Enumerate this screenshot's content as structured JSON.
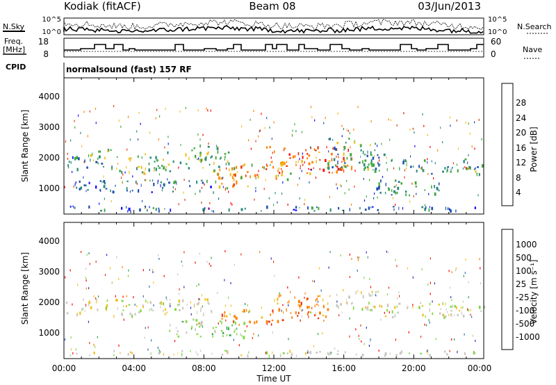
{
  "header": {
    "station": "Kodiak (fitACF)",
    "beam": "Beam 08",
    "date": "03/Jun/2013"
  },
  "strips": {
    "nsky_label": "N.Sky",
    "nsky_ticks": [
      "10^5",
      "10^0"
    ],
    "nsearch_label": "N.Search",
    "nsearch_ticks": [
      "10^5",
      "10^0"
    ],
    "freq_label_1": "Freq.",
    "freq_label_2": "[MHz]",
    "freq_ticks": [
      "18",
      "8"
    ],
    "nave_label": "Nave",
    "nave_ticks": [
      "60",
      "0"
    ],
    "cpid_label": "CPID",
    "cpid_text": "normalsound (fast) 157 RF"
  },
  "chart_data": [
    {
      "type": "heatmap",
      "panel": "power",
      "ylabel": "Slant Range [km]",
      "ylim": [
        0,
        4500
      ],
      "y_ticks": [
        1000,
        2000,
        3000,
        4000
      ],
      "x_ticks": [
        "00:00",
        "04:00",
        "08:00",
        "12:00",
        "16:00",
        "20:00",
        "00:00"
      ],
      "colorbar": {
        "label": "Power [dB]",
        "ticks": [
          "28",
          "24",
          "20",
          "16",
          "12",
          "8",
          "4"
        ],
        "colors": [
          "#ff0000",
          "#e8380a",
          "#ff8000",
          "#f0c020",
          "#40a840",
          "#2a8a78",
          "#2050b0",
          "#1010ff"
        ]
      },
      "bands": [
        {
          "t0": 0.1,
          "t1": 1.3,
          "r0": 1450,
          "r1": 1950,
          "lvl": 7
        },
        {
          "t0": 1.3,
          "t1": 2.8,
          "r0": 1500,
          "r1": 2200,
          "lvl": 10
        },
        {
          "t0": 2.8,
          "t1": 4.5,
          "r0": 1350,
          "r1": 1900,
          "lvl": 14
        },
        {
          "t0": 4.5,
          "t1": 6.5,
          "r0": 1350,
          "r1": 2100,
          "lvl": 12
        },
        {
          "t0": 6.5,
          "t1": 9.5,
          "r0": 1500,
          "r1": 2300,
          "lvl": 12
        },
        {
          "t0": 8.5,
          "t1": 10.5,
          "r0": 800,
          "r1": 1500,
          "lvl": 18
        },
        {
          "t0": 9.5,
          "t1": 13.0,
          "r0": 1100,
          "r1": 1700,
          "lvl": 18
        },
        {
          "t0": 11.5,
          "t1": 16.5,
          "r0": 1300,
          "r1": 2200,
          "lvl": 22
        },
        {
          "t0": 15.0,
          "t1": 17.8,
          "r0": 1500,
          "r1": 2500,
          "lvl": 10
        },
        {
          "t0": 17.0,
          "t1": 20.0,
          "r0": 1400,
          "r1": 2000,
          "lvl": 8
        },
        {
          "t0": 17.5,
          "t1": 21.5,
          "r0": 600,
          "r1": 1100,
          "lvl": 8
        },
        {
          "t0": 20.0,
          "t1": 24.0,
          "r0": 1300,
          "r1": 1800,
          "lvl": 9
        },
        {
          "t0": 0.5,
          "t1": 9.0,
          "r0": 700,
          "r1": 1100,
          "lvl": 6
        },
        {
          "t0": 0.0,
          "t1": 24.0,
          "r0": 80,
          "r1": 250,
          "lvl": 5
        }
      ]
    },
    {
      "type": "heatmap",
      "panel": "velocity",
      "ylabel": "Slant Range [km]",
      "xlabel": "Time UT",
      "ylim": [
        0,
        4500
      ],
      "y_ticks": [
        1000,
        2000,
        3000,
        4000
      ],
      "x_ticks": [
        "00:00",
        "04:00",
        "08:00",
        "12:00",
        "16:00",
        "20:00",
        "00:00"
      ],
      "colorbar": {
        "label": "Velocity [m s⁻¹]",
        "ticks": [
          "1000",
          "500",
          "100",
          "25",
          "-25",
          "-100",
          "-500",
          "-1000"
        ],
        "colors": [
          "#2030c0",
          "#2a70b0",
          "#30a040",
          "#80d840",
          "#c8c8c0",
          "#f0c020",
          "#ff8000",
          "#e83010",
          "#ff0000"
        ]
      },
      "bands": [
        {
          "t0": 0.1,
          "t1": 2.0,
          "r0": 1450,
          "r1": 1950,
          "c": 4
        },
        {
          "t0": 2.0,
          "t1": 4.5,
          "r0": 1400,
          "r1": 1950,
          "c": 4
        },
        {
          "t0": 4.5,
          "t1": 8.5,
          "r0": 1450,
          "r1": 2000,
          "c": 4
        },
        {
          "t0": 6.0,
          "t1": 10.5,
          "r0": 700,
          "r1": 1300,
          "c": 3
        },
        {
          "t0": 9.0,
          "t1": 12.0,
          "r0": 1100,
          "r1": 1600,
          "c": 6
        },
        {
          "t0": 12.0,
          "t1": 15.5,
          "r0": 1200,
          "r1": 2100,
          "c": 6
        },
        {
          "t0": 15.5,
          "t1": 18.0,
          "r0": 1500,
          "r1": 2300,
          "c": 4
        },
        {
          "t0": 18.0,
          "t1": 24.0,
          "r0": 1350,
          "r1": 1850,
          "c": 4
        },
        {
          "t0": 0.0,
          "t1": 24.0,
          "r0": 80,
          "r1": 250,
          "c": 4
        }
      ]
    }
  ]
}
